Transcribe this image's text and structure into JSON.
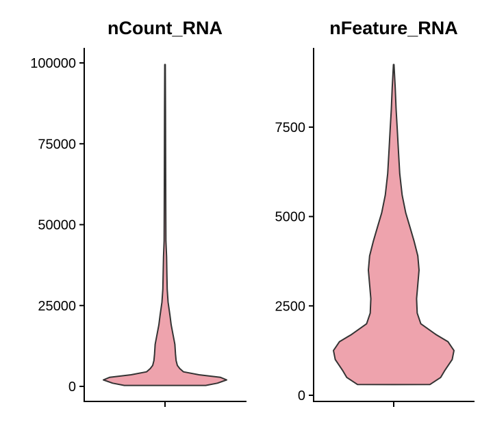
{
  "chart_data": [
    {
      "type": "violin",
      "title": "nCount_RNA",
      "xlabel": "",
      "ylabel": "",
      "ylim": [
        -4000,
        105000
      ],
      "yticks": [
        0,
        25000,
        50000,
        75000,
        100000
      ],
      "ytick_labels": [
        "0",
        "25000",
        "50000",
        "75000",
        "100000"
      ],
      "fill": "#eea3ad",
      "stroke": "#333333",
      "range": [
        300,
        99500
      ],
      "density_profile": [
        [
          300,
          0.66
        ],
        [
          1000,
          0.85
        ],
        [
          2000,
          1.0
        ],
        [
          2800,
          0.9
        ],
        [
          3600,
          0.55
        ],
        [
          4500,
          0.3
        ],
        [
          5500,
          0.24
        ],
        [
          6500,
          0.2
        ],
        [
          8000,
          0.18
        ],
        [
          10000,
          0.17
        ],
        [
          13000,
          0.16
        ],
        [
          16000,
          0.13
        ],
        [
          19000,
          0.1
        ],
        [
          22000,
          0.08
        ],
        [
          26000,
          0.05
        ],
        [
          30000,
          0.035
        ],
        [
          35000,
          0.03
        ],
        [
          40000,
          0.025
        ],
        [
          45000,
          0.015
        ],
        [
          55000,
          0.012
        ],
        [
          70000,
          0.01
        ],
        [
          85000,
          0.008
        ],
        [
          99500,
          0.005
        ]
      ]
    },
    {
      "type": "violin",
      "title": "nFeature_RNA",
      "xlabel": "",
      "ylabel": "",
      "ylim": [
        -250,
        9700
      ],
      "yticks": [
        0,
        2500,
        5000,
        7500
      ],
      "ytick_labels": [
        "0",
        "2500",
        "5000",
        "7500"
      ],
      "fill": "#eea3ad",
      "stroke": "#333333",
      "range": [
        300,
        9250
      ],
      "density_profile": [
        [
          300,
          0.6
        ],
        [
          500,
          0.78
        ],
        [
          700,
          0.85
        ],
        [
          1000,
          0.97
        ],
        [
          1250,
          1.0
        ],
        [
          1500,
          0.9
        ],
        [
          1700,
          0.7
        ],
        [
          2000,
          0.45
        ],
        [
          2300,
          0.39
        ],
        [
          2700,
          0.38
        ],
        [
          3100,
          0.4
        ],
        [
          3500,
          0.42
        ],
        [
          3900,
          0.4
        ],
        [
          4300,
          0.34
        ],
        [
          4700,
          0.27
        ],
        [
          5100,
          0.2
        ],
        [
          5600,
          0.14
        ],
        [
          6200,
          0.1
        ],
        [
          6800,
          0.08
        ],
        [
          7400,
          0.06
        ],
        [
          8000,
          0.04
        ],
        [
          8600,
          0.025
        ],
        [
          9250,
          0.005
        ]
      ]
    }
  ]
}
